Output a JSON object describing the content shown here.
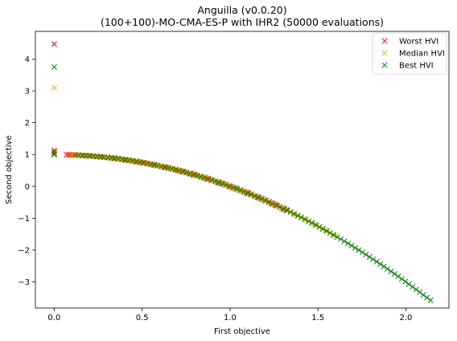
{
  "chart_data": {
    "type": "scatter",
    "title_line1": "Anguilla (v0.0.20)",
    "title_line2": "(100+100)-MO-CMA-ES-P with IHR2 (50000 evaluations)",
    "xlabel": "First objective",
    "ylabel": "Second objective",
    "xlim": [
      -0.107,
      2.245
    ],
    "ylim": [
      -3.82,
      4.87
    ],
    "xticks": [
      0.0,
      0.5,
      1.0,
      1.5,
      2.0
    ],
    "xtick_labels": [
      "0.0",
      "0.5",
      "1.0",
      "1.5",
      "2.0"
    ],
    "yticks": [
      -3,
      -2,
      -1,
      0,
      1,
      2,
      3,
      4
    ],
    "ytick_labels": [
      "−3",
      "−2",
      "−1",
      "0",
      "1",
      "2",
      "3",
      "4"
    ],
    "grid": false,
    "legend_position": "top-right",
    "marker": "x",
    "series": [
      {
        "name": "Worst HVI",
        "color": "#ff0000",
        "x_range": [
          0.07,
          1.32
        ],
        "count": 100,
        "outliers": [
          [
            0.0,
            4.47
          ],
          [
            0.0,
            1.13
          ],
          [
            0.0,
            1.02
          ]
        ]
      },
      {
        "name": "Median HVI",
        "color": "#ffa500",
        "x_range": [
          0.1,
          1.6
        ],
        "count": 100,
        "outliers": [
          [
            0.0,
            3.1
          ],
          [
            0.0,
            1.07
          ]
        ]
      },
      {
        "name": "Best HVI",
        "color": "#008000",
        "x_range": [
          0.12,
          2.14
        ],
        "count": 100,
        "outliers": [
          [
            0.0,
            3.75
          ],
          [
            0.0,
            1.08
          ],
          [
            0.0,
            1.0
          ]
        ]
      }
    ],
    "curve": "y = 1 - x^2"
  }
}
